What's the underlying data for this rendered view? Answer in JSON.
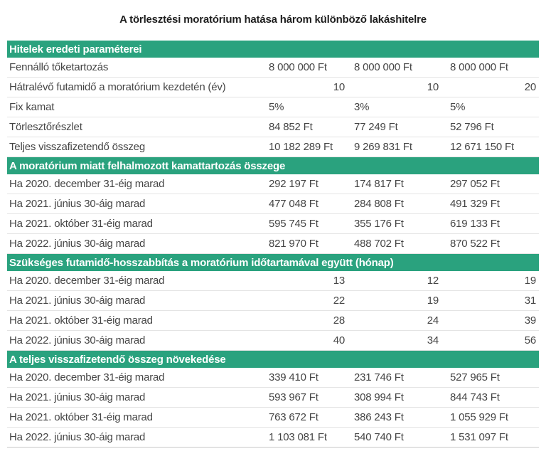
{
  "colors": {
    "accent_green": "#2aa27e",
    "header_text": "#ffffff",
    "body_text": "#454545",
    "divider": "#e4e4e4",
    "title_text": "#1e1e1e"
  },
  "chart_data": {
    "type": "table",
    "title": "A törlesztési moratórium hatása három különböző lakáshitelre",
    "sections": [
      {
        "header": "Hitelek eredeti paraméterei",
        "rows": [
          {
            "label": "Fennálló tőketartozás",
            "values": [
              "8 000 000 Ft",
              "8 000 000 Ft",
              "8 000 000 Ft"
            ]
          },
          {
            "label": "Hátralévő futamidő a moratórium kezdetén (év)",
            "values": [
              "10",
              "10",
              "20"
            ]
          },
          {
            "label": "Fix kamat",
            "values": [
              "5%",
              "3%",
              "5%"
            ]
          },
          {
            "label": "Törlesztőrészlet",
            "values": [
              "84 852 Ft",
              "77 249 Ft",
              "52 796 Ft"
            ]
          },
          {
            "label": "Teljes visszafizetendő összeg",
            "values": [
              "10 182 289 Ft",
              "9 269 831 Ft",
              "12 671 150 Ft"
            ]
          }
        ]
      },
      {
        "header": "A moratórium miatt felhalmozott kamattartozás összege",
        "rows": [
          {
            "label": "Ha 2020. december 31-éig marad",
            "values": [
              "292 197 Ft",
              "174 817 Ft",
              "297 052 Ft"
            ]
          },
          {
            "label": "Ha 2021. június 30-áig marad",
            "values": [
              "477 048 Ft",
              "284 808 Ft",
              "491 329 Ft"
            ]
          },
          {
            "label": "Ha 2021. október 31-éig marad",
            "values": [
              "595 745 Ft",
              "355 176 Ft",
              "619 133 Ft"
            ]
          },
          {
            "label": "Ha 2022. június 30-áig marad",
            "values": [
              "821 970 Ft",
              "488 702 Ft",
              "870 522 Ft"
            ]
          }
        ]
      },
      {
        "header": "Szükséges futamidő-hosszabbítás a moratórium időtartamával együtt (hónap)",
        "rows": [
          {
            "label": "Ha 2020. december 31-éig marad",
            "values": [
              "13",
              "12",
              "19"
            ]
          },
          {
            "label": "Ha 2021. június 30-áig marad",
            "values": [
              "22",
              "19",
              "31"
            ]
          },
          {
            "label": "Ha 2021. október 31-éig marad",
            "values": [
              "28",
              "24",
              "39"
            ]
          },
          {
            "label": "Ha 2022. június 30-áig marad",
            "values": [
              "40",
              "34",
              "56"
            ]
          }
        ]
      },
      {
        "header": "A teljes visszafizetendő összeg növekedése",
        "rows": [
          {
            "label": "Ha 2020. december 31-éig marad",
            "values": [
              "339 410 Ft",
              "231 746 Ft",
              "527 965 Ft"
            ]
          },
          {
            "label": "Ha 2021. június 30-áig marad",
            "values": [
              "593 967 Ft",
              "308 994 Ft",
              "844 743 Ft"
            ]
          },
          {
            "label": "Ha 2021. október 31-éig marad",
            "values": [
              "763 672 Ft",
              "386 243 Ft",
              "1 055 929 Ft"
            ]
          },
          {
            "label": "Ha 2022. június 30-áig marad",
            "values": [
              "1 103 081 Ft",
              "540 740 Ft",
              "1 531 097 Ft"
            ]
          }
        ]
      }
    ]
  }
}
